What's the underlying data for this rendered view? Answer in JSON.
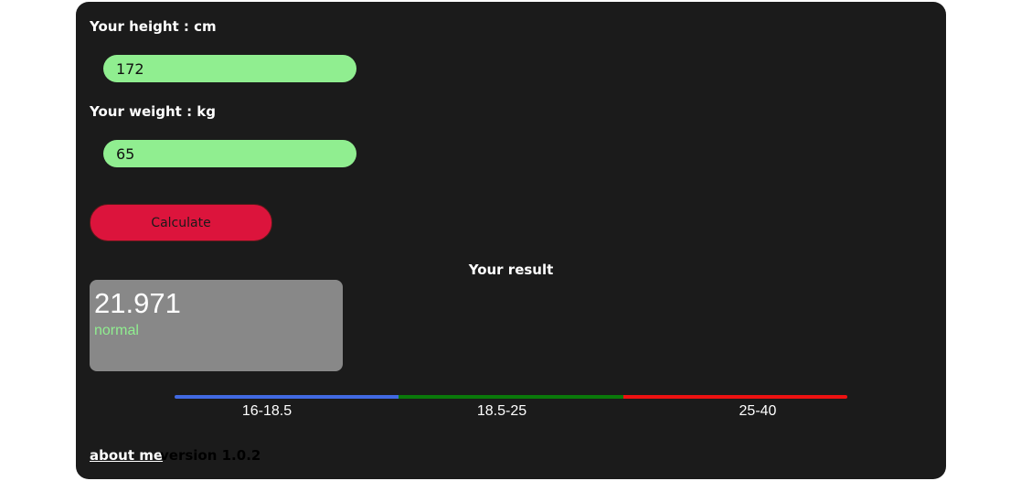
{
  "form": {
    "height_label": "Your height : cm",
    "height_value": "172",
    "weight_label": "Your weight : kg",
    "weight_value": "65",
    "calculate_label": "Calculate"
  },
  "result": {
    "title": "Your result",
    "bmi": "21.971",
    "status": "normal"
  },
  "scale": {
    "ranges": [
      {
        "label": "16-18.5",
        "color": "#4169e1"
      },
      {
        "label": "18.5-25",
        "color": "#0a7a0a"
      },
      {
        "label": "25-40",
        "color": "#ee1111"
      }
    ]
  },
  "footer": {
    "about_label": "about me",
    "version": "version 1.0.2"
  },
  "colors": {
    "panel_bg": "#1b1b1b",
    "input_bg": "#90ee90",
    "button_bg": "#dc143c",
    "result_box_bg": "#888888"
  }
}
